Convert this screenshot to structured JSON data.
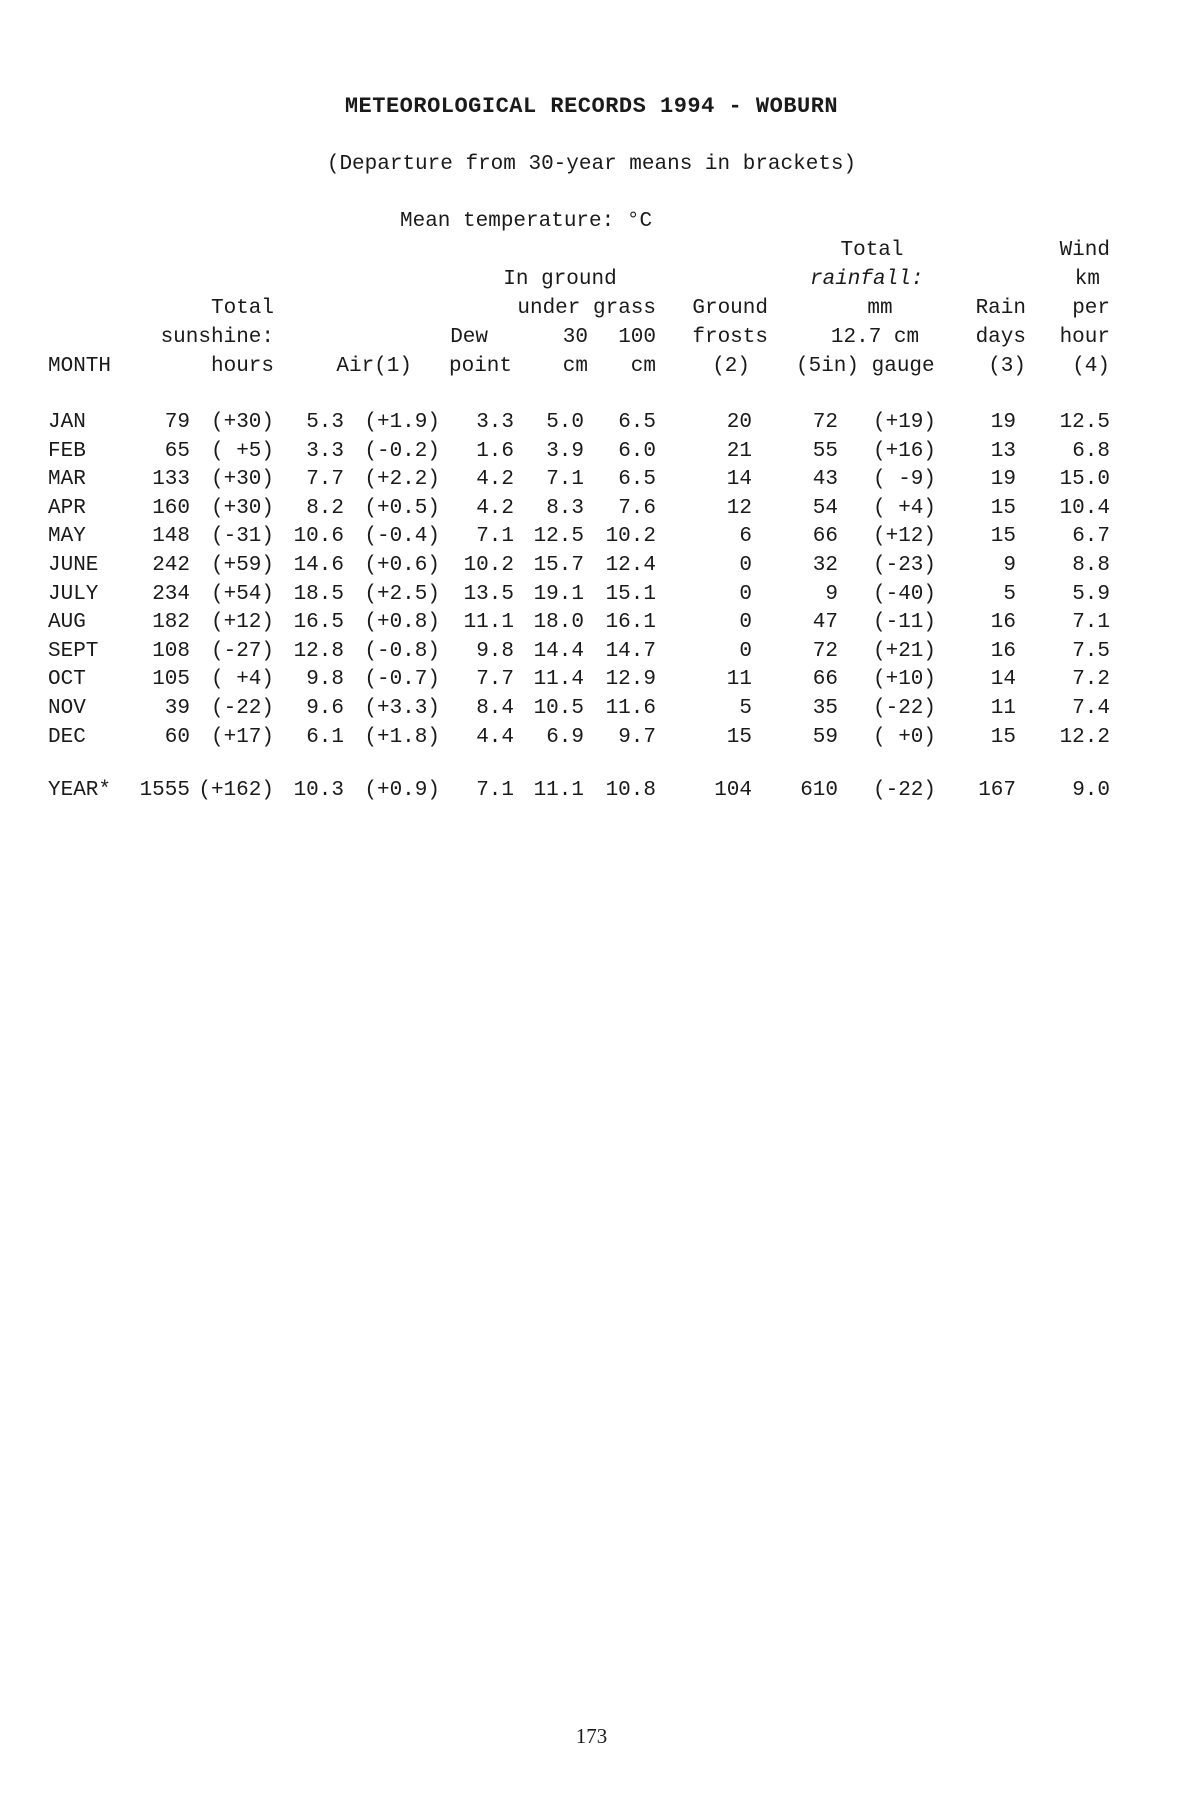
{
  "title": "METEOROLOGICAL RECORDS 1994 - WOBURN",
  "subtitle": "(Departure from 30-year means in brackets)",
  "mean_temp_label": "Mean temperature: °C",
  "headers": {
    "month": "MONTH",
    "sunshine_1": "Total",
    "sunshine_2": "sunshine:",
    "sunshine_3": "hours",
    "air": "Air(1)",
    "dew_1": "Dew",
    "dew_2": "point",
    "ground_1": "In ground",
    "ground_2": "under grass",
    "g30_1": "30",
    "g30_2": "cm",
    "g100_1": "100",
    "g100_2": "cm",
    "frost_1": "Ground",
    "frost_2": "frosts",
    "frost_3": "(2)",
    "rain_1": "Total",
    "rain_2": "rainfall:",
    "rain_3": "mm",
    "rain_4": "12.7 cm",
    "rain_5": "(5in) gauge",
    "days_1": "Rain",
    "days_2": "days",
    "days_3": "(3)",
    "wind_1": "Wind",
    "wind_2": "km",
    "wind_3": "per",
    "wind_4": "hour",
    "wind_5": "(4)"
  },
  "rows": [
    {
      "month": "JAN",
      "sun": "79",
      "sun_dep": "(+30)",
      "air": "5.3",
      "air_dep": "(+1.9)",
      "dew": "3.3",
      "g30": "5.0",
      "g100": "6.5",
      "frosts": "20",
      "rain": "72",
      "rain_dep": "(+19)",
      "days": "19",
      "wind": "12.5"
    },
    {
      "month": "FEB",
      "sun": "65",
      "sun_dep": "( +5)",
      "air": "3.3",
      "air_dep": "(-0.2)",
      "dew": "1.6",
      "g30": "3.9",
      "g100": "6.0",
      "frosts": "21",
      "rain": "55",
      "rain_dep": "(+16)",
      "days": "13",
      "wind": "6.8"
    },
    {
      "month": "MAR",
      "sun": "133",
      "sun_dep": "(+30)",
      "air": "7.7",
      "air_dep": "(+2.2)",
      "dew": "4.2",
      "g30": "7.1",
      "g100": "6.5",
      "frosts": "14",
      "rain": "43",
      "rain_dep": "( -9)",
      "days": "19",
      "wind": "15.0"
    },
    {
      "month": "APR",
      "sun": "160",
      "sun_dep": "(+30)",
      "air": "8.2",
      "air_dep": "(+0.5)",
      "dew": "4.2",
      "g30": "8.3",
      "g100": "7.6",
      "frosts": "12",
      "rain": "54",
      "rain_dep": "( +4)",
      "days": "15",
      "wind": "10.4"
    },
    {
      "month": "MAY",
      "sun": "148",
      "sun_dep": "(-31)",
      "air": "10.6",
      "air_dep": "(-0.4)",
      "dew": "7.1",
      "g30": "12.5",
      "g100": "10.2",
      "frosts": "6",
      "rain": "66",
      "rain_dep": "(+12)",
      "days": "15",
      "wind": "6.7"
    },
    {
      "month": "JUNE",
      "sun": "242",
      "sun_dep": "(+59)",
      "air": "14.6",
      "air_dep": "(+0.6)",
      "dew": "10.2",
      "g30": "15.7",
      "g100": "12.4",
      "frosts": "0",
      "rain": "32",
      "rain_dep": "(-23)",
      "days": "9",
      "wind": "8.8"
    },
    {
      "month": "JULY",
      "sun": "234",
      "sun_dep": "(+54)",
      "air": "18.5",
      "air_dep": "(+2.5)",
      "dew": "13.5",
      "g30": "19.1",
      "g100": "15.1",
      "frosts": "0",
      "rain": "9",
      "rain_dep": "(-40)",
      "days": "5",
      "wind": "5.9"
    },
    {
      "month": "AUG",
      "sun": "182",
      "sun_dep": "(+12)",
      "air": "16.5",
      "air_dep": "(+0.8)",
      "dew": "11.1",
      "g30": "18.0",
      "g100": "16.1",
      "frosts": "0",
      "rain": "47",
      "rain_dep": "(-11)",
      "days": "16",
      "wind": "7.1"
    },
    {
      "month": "SEPT",
      "sun": "108",
      "sun_dep": "(-27)",
      "air": "12.8",
      "air_dep": "(-0.8)",
      "dew": "9.8",
      "g30": "14.4",
      "g100": "14.7",
      "frosts": "0",
      "rain": "72",
      "rain_dep": "(+21)",
      "days": "16",
      "wind": "7.5"
    },
    {
      "month": "OCT",
      "sun": "105",
      "sun_dep": "( +4)",
      "air": "9.8",
      "air_dep": "(-0.7)",
      "dew": "7.7",
      "g30": "11.4",
      "g100": "12.9",
      "frosts": "11",
      "rain": "66",
      "rain_dep": "(+10)",
      "days": "14",
      "wind": "7.2"
    },
    {
      "month": "NOV",
      "sun": "39",
      "sun_dep": "(-22)",
      "air": "9.6",
      "air_dep": "(+3.3)",
      "dew": "8.4",
      "g30": "10.5",
      "g100": "11.6",
      "frosts": "5",
      "rain": "35",
      "rain_dep": "(-22)",
      "days": "11",
      "wind": "7.4"
    },
    {
      "month": "DEC",
      "sun": "60",
      "sun_dep": "(+17)",
      "air": "6.1",
      "air_dep": "(+1.8)",
      "dew": "4.4",
      "g30": "6.9",
      "g100": "9.7",
      "frosts": "15",
      "rain": "59",
      "rain_dep": "( +0)",
      "days": "15",
      "wind": "12.2"
    }
  ],
  "year_row": {
    "month": "YEAR*",
    "sun": "1555",
    "sun_dep": "(+162)",
    "air": "10.3",
    "air_dep": "(+0.9)",
    "dew": "7.1",
    "g30": "11.1",
    "g100": "10.8",
    "frosts": "104",
    "rain": "610",
    "rain_dep": "(-22)",
    "days": "167",
    "wind": "9.0"
  },
  "page_number": "173"
}
